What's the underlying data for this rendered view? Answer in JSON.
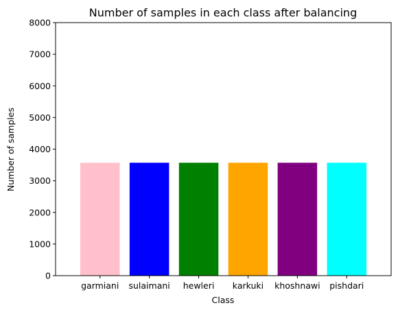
{
  "chart_data": {
    "type": "bar",
    "title": "Number of samples in each class after balancing",
    "xlabel": "Class",
    "ylabel": "Number of samples",
    "categories": [
      "garmiani",
      "sulaimani",
      "hewleri",
      "karkuki",
      "khoshnawi",
      "pishdari"
    ],
    "values": [
      3570,
      3570,
      3570,
      3570,
      3570,
      3570
    ],
    "colors": [
      "#ffc0cb",
      "#0000ff",
      "#008000",
      "#ffa500",
      "#800080",
      "#00ffff"
    ],
    "ylim": [
      0,
      8000
    ],
    "yticks": [
      0,
      1000,
      2000,
      3000,
      4000,
      5000,
      6000,
      7000,
      8000
    ],
    "grid": false,
    "legend": "none"
  }
}
